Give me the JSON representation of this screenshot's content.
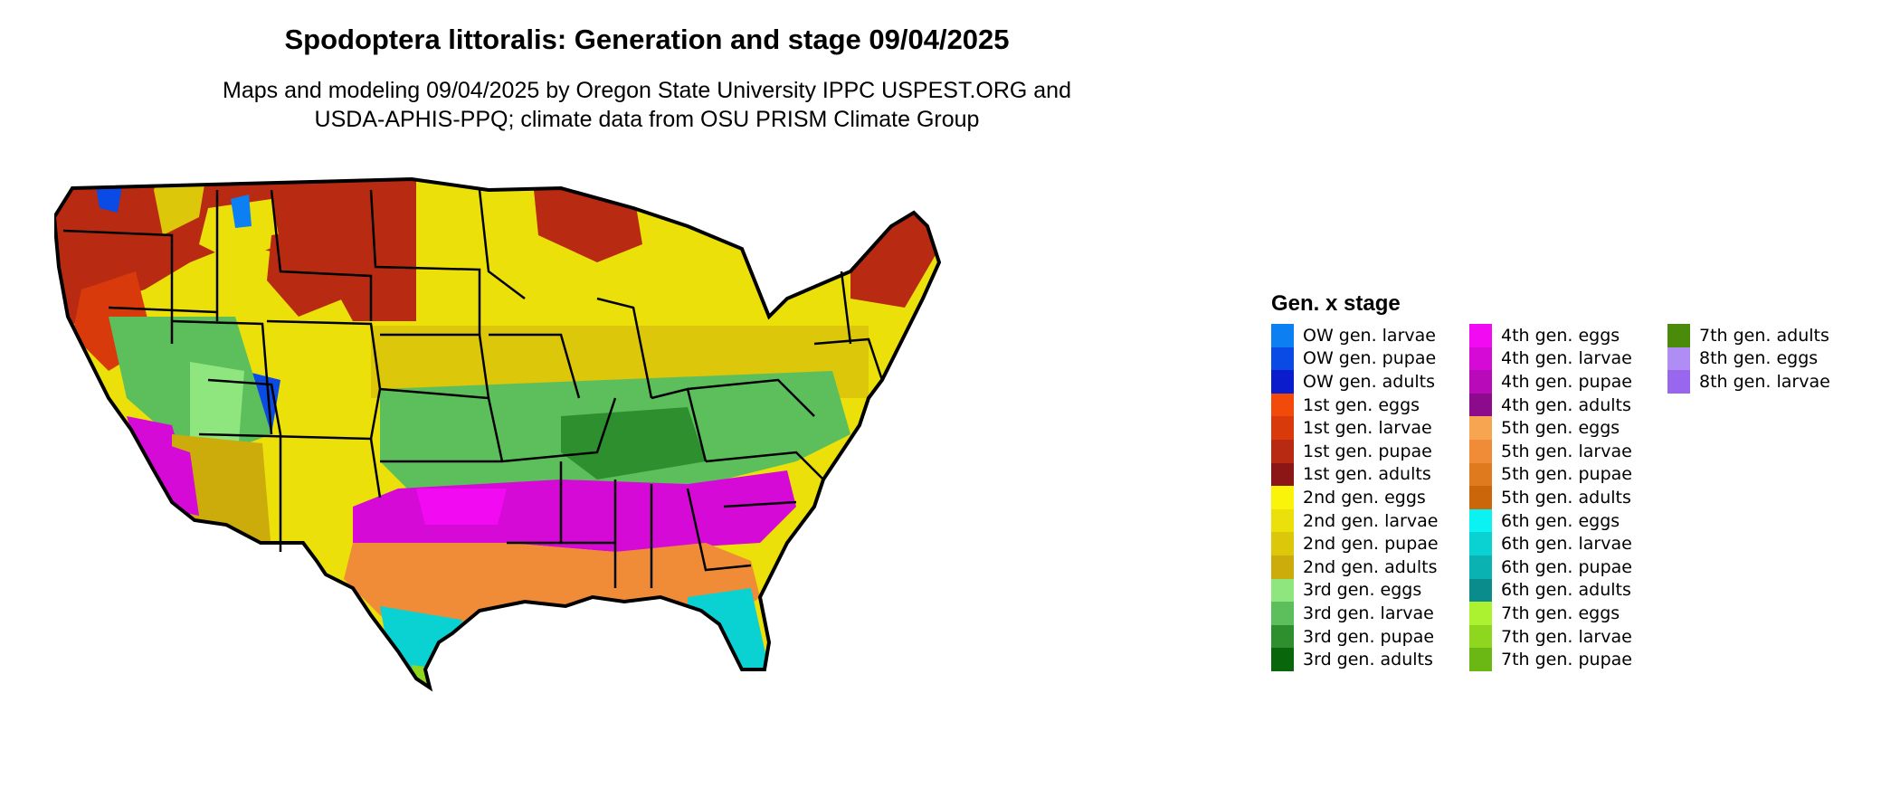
{
  "title": "Spodoptera littoralis: Generation and stage 09/04/2025",
  "subtitle": {
    "line1": "Maps and modeling 09/04/2025 by Oregon State University IPPC USPEST.ORG and",
    "line2": "USDA-APHIS-PPQ; climate data from OSU PRISM Climate Group"
  },
  "legend": {
    "title": "Gen. x stage",
    "columns": [
      [
        {
          "label": "OW gen. larvae",
          "color": "#0c7ff2"
        },
        {
          "label": "OW gen. pupae",
          "color": "#0a4be6"
        },
        {
          "label": "OW gen. adults",
          "color": "#0a1ccc"
        },
        {
          "label": "1st gen. eggs",
          "color": "#f24a0a"
        },
        {
          "label": "1st gen. larvae",
          "color": "#d93a0c"
        },
        {
          "label": "1st gen. pupae",
          "color": "#b82a12"
        },
        {
          "label": "1st gen. adults",
          "color": "#8c1616"
        },
        {
          "label": "2nd gen. eggs",
          "color": "#faf40a"
        },
        {
          "label": "2nd gen. larvae",
          "color": "#ebe00a"
        },
        {
          "label": "2nd gen. pupae",
          "color": "#dcc70a"
        },
        {
          "label": "2nd gen. adults",
          "color": "#ccac0a"
        },
        {
          "label": "3rd gen. eggs",
          "color": "#8fe67f"
        },
        {
          "label": "3rd gen. larvae",
          "color": "#5cbf5c"
        },
        {
          "label": "3rd gen. pupae",
          "color": "#2e8f2e"
        },
        {
          "label": "3rd gen. adults",
          "color": "#0a660a"
        }
      ],
      [
        {
          "label": "4th gen. eggs",
          "color": "#f20af2"
        },
        {
          "label": "4th gen. larvae",
          "color": "#d60ad6"
        },
        {
          "label": "4th gen. pupae",
          "color": "#b80ab8"
        },
        {
          "label": "4th gen. adults",
          "color": "#8c0a8c"
        },
        {
          "label": "5th gen. eggs",
          "color": "#f7a550"
        },
        {
          "label": "5th gen. larvae",
          "color": "#f08c38"
        },
        {
          "label": "5th gen. pupae",
          "color": "#e07a1f"
        },
        {
          "label": "5th gen. adults",
          "color": "#cc660a"
        },
        {
          "label": "6th gen. eggs",
          "color": "#0af2f2"
        },
        {
          "label": "6th gen. larvae",
          "color": "#0ad2d2"
        },
        {
          "label": "6th gen. pupae",
          "color": "#0ab2b2"
        },
        {
          "label": "6th gen. adults",
          "color": "#0a8c8c"
        },
        {
          "label": "7th gen. eggs",
          "color": "#adf230"
        },
        {
          "label": "7th gen. larvae",
          "color": "#8fd61f"
        },
        {
          "label": "7th gen. pupae",
          "color": "#6bb814"
        }
      ],
      [
        {
          "label": "7th gen. adults",
          "color": "#4a8c0a"
        },
        {
          "label": "8th gen. eggs",
          "color": "#b08cf5"
        },
        {
          "label": "8th gen. larvae",
          "color": "#9966ee"
        }
      ]
    ]
  }
}
